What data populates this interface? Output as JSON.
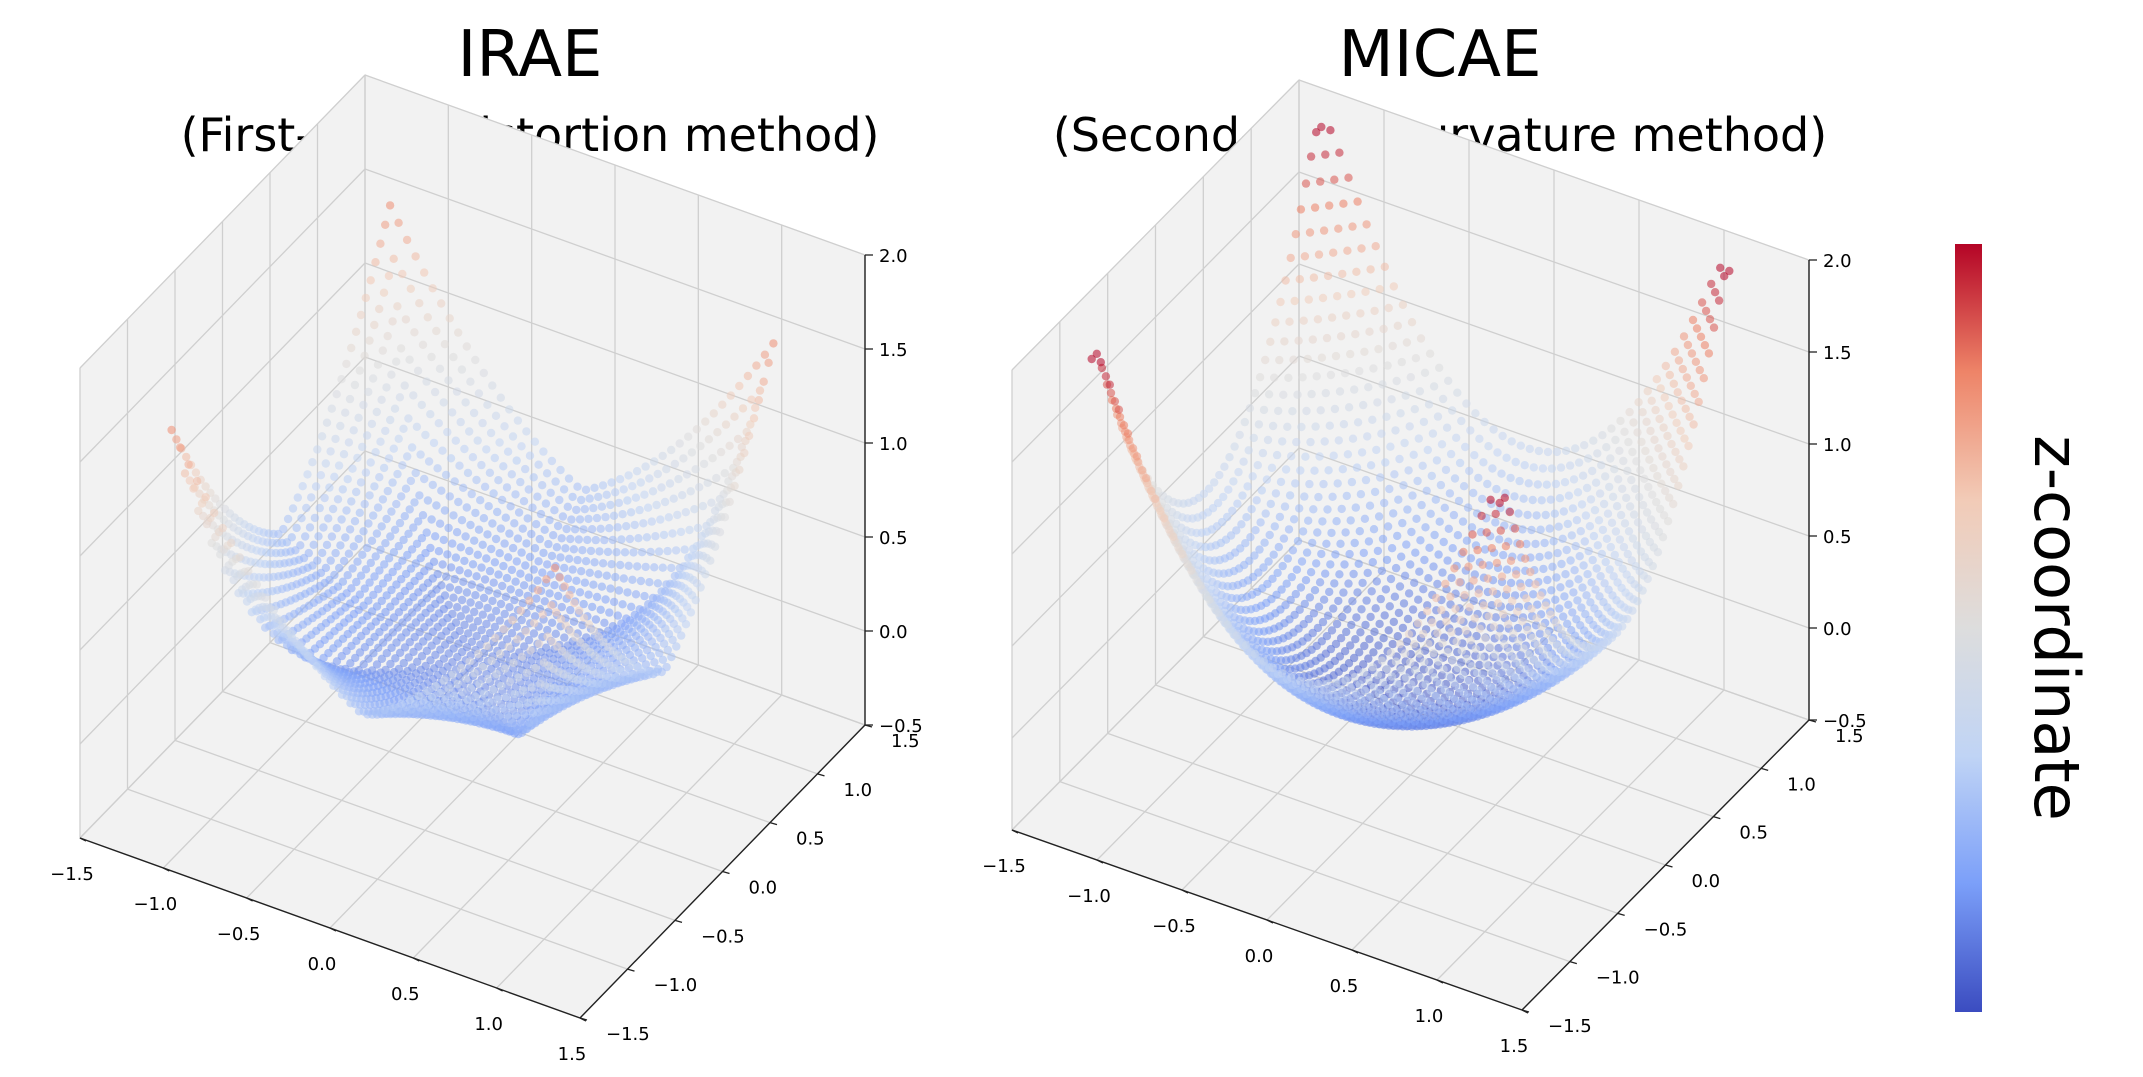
{
  "chart_data": [
    {
      "type": "scatter",
      "title": "IRAE",
      "subtitle": "(First-order distortion method)",
      "xlim": [
        -1.5,
        1.5
      ],
      "ylim": [
        -1.5,
        1.5
      ],
      "zlim": [
        -0.5,
        2.0
      ],
      "x_ticks": [
        "−1.5",
        "−1.0",
        "−0.5",
        "0.0",
        "0.5",
        "1.0",
        "1.5"
      ],
      "y_ticks": [
        "−1.5",
        "−1.0",
        "−0.5",
        "0.0",
        "0.5",
        "1.0",
        "1.5"
      ],
      "z_ticks": [
        "−0.5",
        "0.0",
        "0.5",
        "1.0",
        "1.5",
        "2.0"
      ],
      "grid": true,
      "colormap": "coolwarm",
      "surface": "z = x^2 - y^2 + 0.5*(x^2 + y^2), distorted"
    },
    {
      "type": "scatter",
      "title": "MICAE",
      "subtitle": "(Second-order curvature method)",
      "xlim": [
        -1.5,
        1.5
      ],
      "ylim": [
        -1.5,
        1.5
      ],
      "zlim": [
        -0.5,
        2.0
      ],
      "x_ticks": [
        "−1.5",
        "−1.0",
        "−0.5",
        "0.0",
        "0.5",
        "1.0",
        "1.5"
      ],
      "y_ticks": [
        "−1.5",
        "−1.0",
        "−0.5",
        "0.0",
        "0.5",
        "1.0",
        "1.5"
      ],
      "z_ticks": [
        "−0.5",
        "0.0",
        "0.5",
        "1.0",
        "1.5",
        "2.0"
      ],
      "grid": true,
      "colormap": "coolwarm",
      "surface": "z = 0.5*(x^2 + y^2) + 0.4*(x^2 - y^2)^2 style bowl"
    }
  ],
  "colorbar": {
    "label": "z-coordinate",
    "colors": [
      "#3b4cc0",
      "#7b9ff9",
      "#c0d4f5",
      "#dddddd",
      "#f2cbb7",
      "#ee8468",
      "#b40426"
    ]
  }
}
